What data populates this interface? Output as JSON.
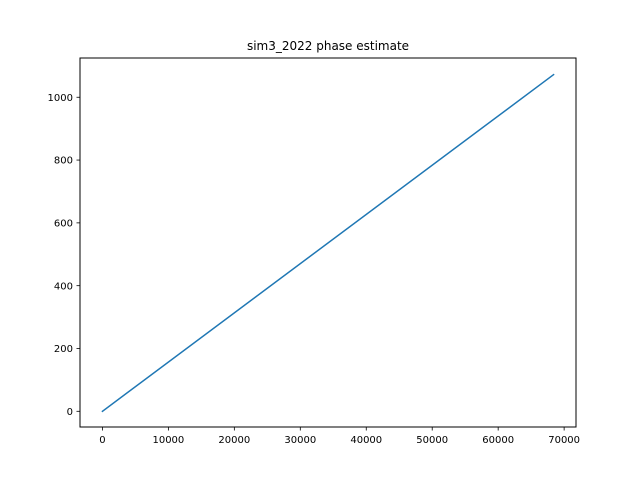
{
  "chart_data": {
    "type": "line",
    "title": "sim3_2022 phase estimate",
    "xlabel": "",
    "ylabel": "",
    "xlim": [
      -3400,
      71800
    ],
    "ylim": [
      -50,
      1125
    ],
    "x_ticks": [
      0,
      10000,
      20000,
      30000,
      40000,
      50000,
      60000,
      70000
    ],
    "y_ticks": [
      0,
      200,
      400,
      600,
      800,
      1000
    ],
    "x_tick_labels": [
      "0",
      "10000",
      "20000",
      "30000",
      "40000",
      "50000",
      "60000",
      "70000"
    ],
    "y_tick_labels": [
      "0",
      "200",
      "400",
      "600",
      "800",
      "1000"
    ],
    "grid": false,
    "series": [
      {
        "color": "#1f77b4",
        "x": [
          0,
          68400
        ],
        "y": [
          0,
          1072
        ]
      }
    ]
  }
}
